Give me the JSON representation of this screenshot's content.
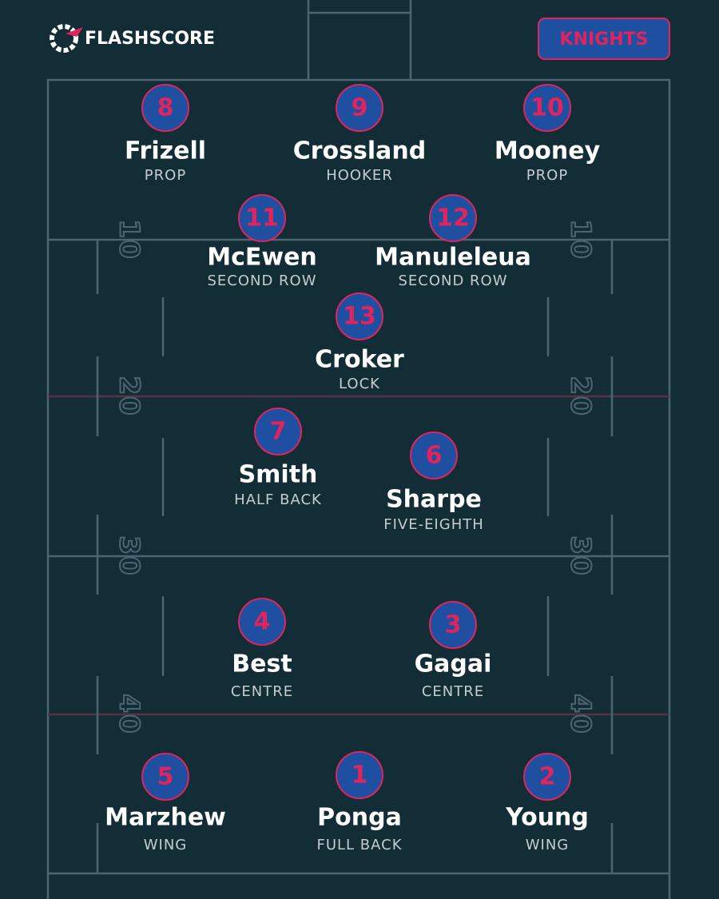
{
  "brand": "FLASHSCORE",
  "team": "KNIGHTS",
  "field": {
    "yard_labels": [
      "10",
      "20",
      "30",
      "40"
    ]
  },
  "players": [
    {
      "number": 8,
      "name": "Frizell",
      "position": "PROP"
    },
    {
      "number": 9,
      "name": "Crossland",
      "position": "HOOKER"
    },
    {
      "number": 10,
      "name": "Mooney",
      "position": "PROP"
    },
    {
      "number": 11,
      "name": "McEwen",
      "position": "SECOND ROW"
    },
    {
      "number": 12,
      "name": "Manuleleua",
      "position": "SECOND ROW"
    },
    {
      "number": 13,
      "name": "Croker",
      "position": "LOCK"
    },
    {
      "number": 7,
      "name": "Smith",
      "position": "HALF BACK"
    },
    {
      "number": 6,
      "name": "Sharpe",
      "position": "FIVE-EIGHTH"
    },
    {
      "number": 4,
      "name": "Best",
      "position": "CENTRE"
    },
    {
      "number": 3,
      "name": "Gagai",
      "position": "CENTRE"
    },
    {
      "number": 5,
      "name": "Marzhew",
      "position": "WING"
    },
    {
      "number": 1,
      "name": "Ponga",
      "position": "FULL BACK"
    },
    {
      "number": 2,
      "name": "Young",
      "position": "WING"
    }
  ]
}
